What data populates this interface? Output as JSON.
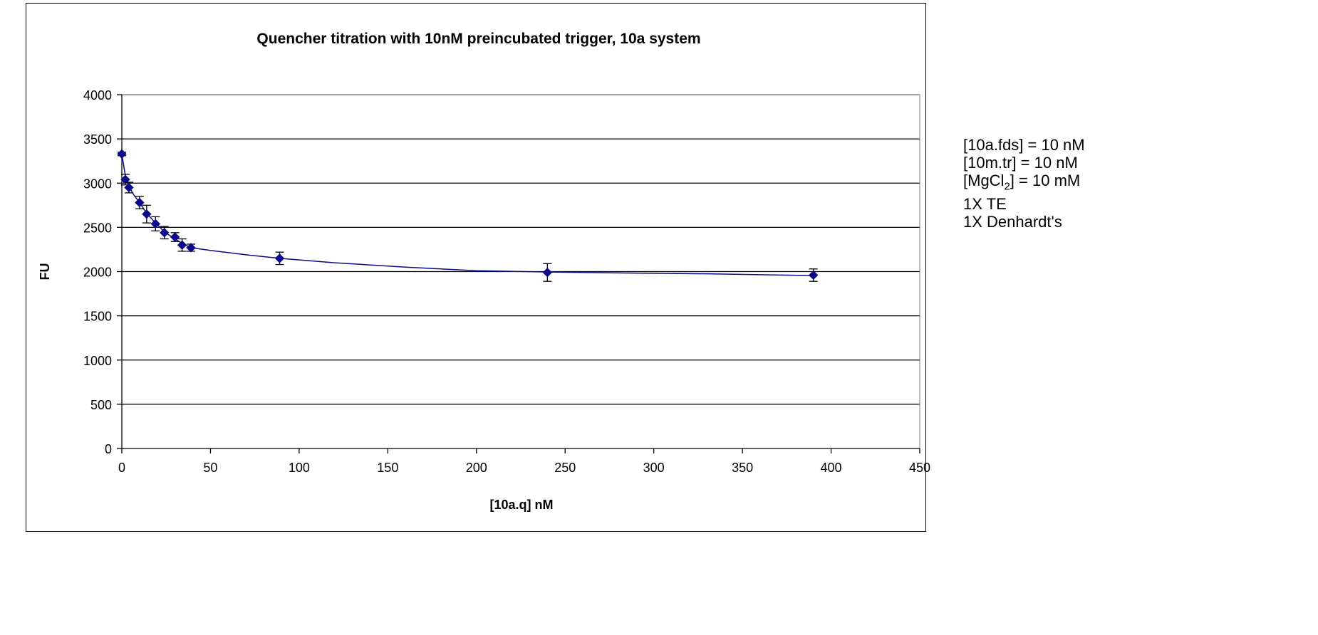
{
  "chart_data": {
    "type": "scatter",
    "title": "Quencher titration with 10nM preincubated trigger, 10a system",
    "xlabel": "[10a.q] nM",
    "ylabel": "FU",
    "xlim": [
      0,
      450
    ],
    "ylim": [
      0,
      4000
    ],
    "xticks": [
      0,
      50,
      100,
      150,
      200,
      250,
      300,
      350,
      400,
      450
    ],
    "yticks": [
      0,
      500,
      1000,
      1500,
      2000,
      2500,
      3000,
      3500,
      4000
    ],
    "grid": "horizontal major gridlines",
    "legend": "none",
    "series": [
      {
        "color": "#0a0a8a",
        "marker": "diamond",
        "points": [
          {
            "x": 0,
            "y": 3330,
            "err": 20
          },
          {
            "x": 2,
            "y": 3040,
            "err": 60
          },
          {
            "x": 4,
            "y": 2950,
            "err": 60
          },
          {
            "x": 10,
            "y": 2780,
            "err": 70
          },
          {
            "x": 14,
            "y": 2650,
            "err": 100
          },
          {
            "x": 19,
            "y": 2540,
            "err": 80
          },
          {
            "x": 24,
            "y": 2440,
            "err": 70
          },
          {
            "x": 30,
            "y": 2390,
            "err": 50
          },
          {
            "x": 34,
            "y": 2300,
            "err": 70
          },
          {
            "x": 39,
            "y": 2270,
            "err": 40
          },
          {
            "x": 89,
            "y": 2150,
            "err": 70
          },
          {
            "x": 240,
            "y": 1990,
            "err": 100
          },
          {
            "x": 390,
            "y": 1960,
            "err": 70
          }
        ],
        "fit": [
          [
            0,
            3330
          ],
          [
            2,
            3080
          ],
          [
            4,
            2960
          ],
          [
            7,
            2860
          ],
          [
            10,
            2780
          ],
          [
            14,
            2660
          ],
          [
            19,
            2550
          ],
          [
            24,
            2450
          ],
          [
            29,
            2380
          ],
          [
            34,
            2320
          ],
          [
            39,
            2270
          ],
          [
            50,
            2240
          ],
          [
            70,
            2190
          ],
          [
            89,
            2150
          ],
          [
            120,
            2100
          ],
          [
            160,
            2050
          ],
          [
            200,
            2010
          ],
          [
            240,
            1995
          ],
          [
            280,
            1985
          ],
          [
            330,
            1975
          ],
          [
            390,
            1955
          ]
        ]
      }
    ]
  },
  "conditions": {
    "line1": "[10a.fds] = 10 nM",
    "line2": "[10m.tr] = 10 nM",
    "line3_pre": "[MgCl",
    "line3_sub": "2",
    "line3_post": "] = 10 mM",
    "line4": "1X TE",
    "line5": "1X Denhardt's"
  }
}
